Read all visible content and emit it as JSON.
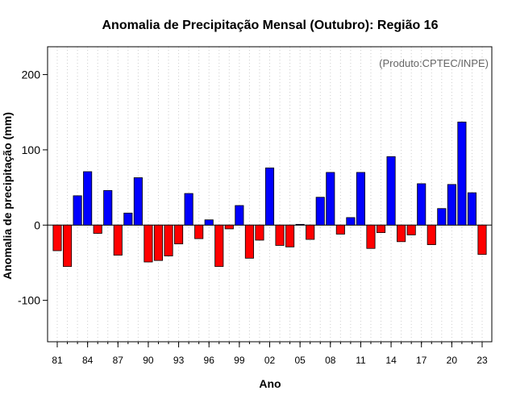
{
  "chart_data": {
    "type": "bar",
    "title": "Anomalia de Precipitação Mensal (Outubro): Região 16",
    "xlabel": "Ano",
    "ylabel": "Anomalia de precipitação (mm)",
    "annotation": "(Produto:CPTEC/INPE)",
    "ylim": [
      -155,
      237
    ],
    "y_ticks": [
      -100,
      0,
      100,
      200
    ],
    "y_tick_labels": [
      "-100",
      "0",
      "100",
      "200"
    ],
    "x_tick_labels": [
      "81",
      "84",
      "87",
      "90",
      "93",
      "96",
      "99",
      "02",
      "05",
      "08",
      "11",
      "14",
      "17",
      "20",
      "23"
    ],
    "x_tick_every": 3,
    "categories": [
      "1981",
      "1982",
      "1983",
      "1984",
      "1985",
      "1986",
      "1987",
      "1988",
      "1989",
      "1990",
      "1991",
      "1992",
      "1993",
      "1994",
      "1995",
      "1996",
      "1997",
      "1998",
      "1999",
      "2000",
      "2001",
      "2002",
      "2003",
      "2004",
      "2005",
      "2006",
      "2007",
      "2008",
      "2009",
      "2010",
      "2011",
      "2012",
      "2013",
      "2014",
      "2015",
      "2016",
      "2017",
      "2018",
      "2019",
      "2020",
      "2021",
      "2022",
      "2023"
    ],
    "values": [
      -34,
      -55,
      39,
      71,
      -11,
      46,
      -40,
      16,
      63,
      -49,
      -47,
      -41,
      -25,
      42,
      -18,
      7,
      -55,
      -5,
      26,
      -44,
      -20,
      76,
      -27,
      -29,
      1,
      -19,
      37,
      70,
      -12,
      10,
      70,
      -31,
      -10,
      91,
      -22,
      -13,
      55,
      -26,
      22,
      54,
      137,
      43,
      -39
    ],
    "grid": true,
    "colors": {
      "positive": "#0000ff",
      "negative": "#ff0000",
      "grid": "#cccccc",
      "axis": "#000000",
      "annotation": "#666666"
    }
  }
}
